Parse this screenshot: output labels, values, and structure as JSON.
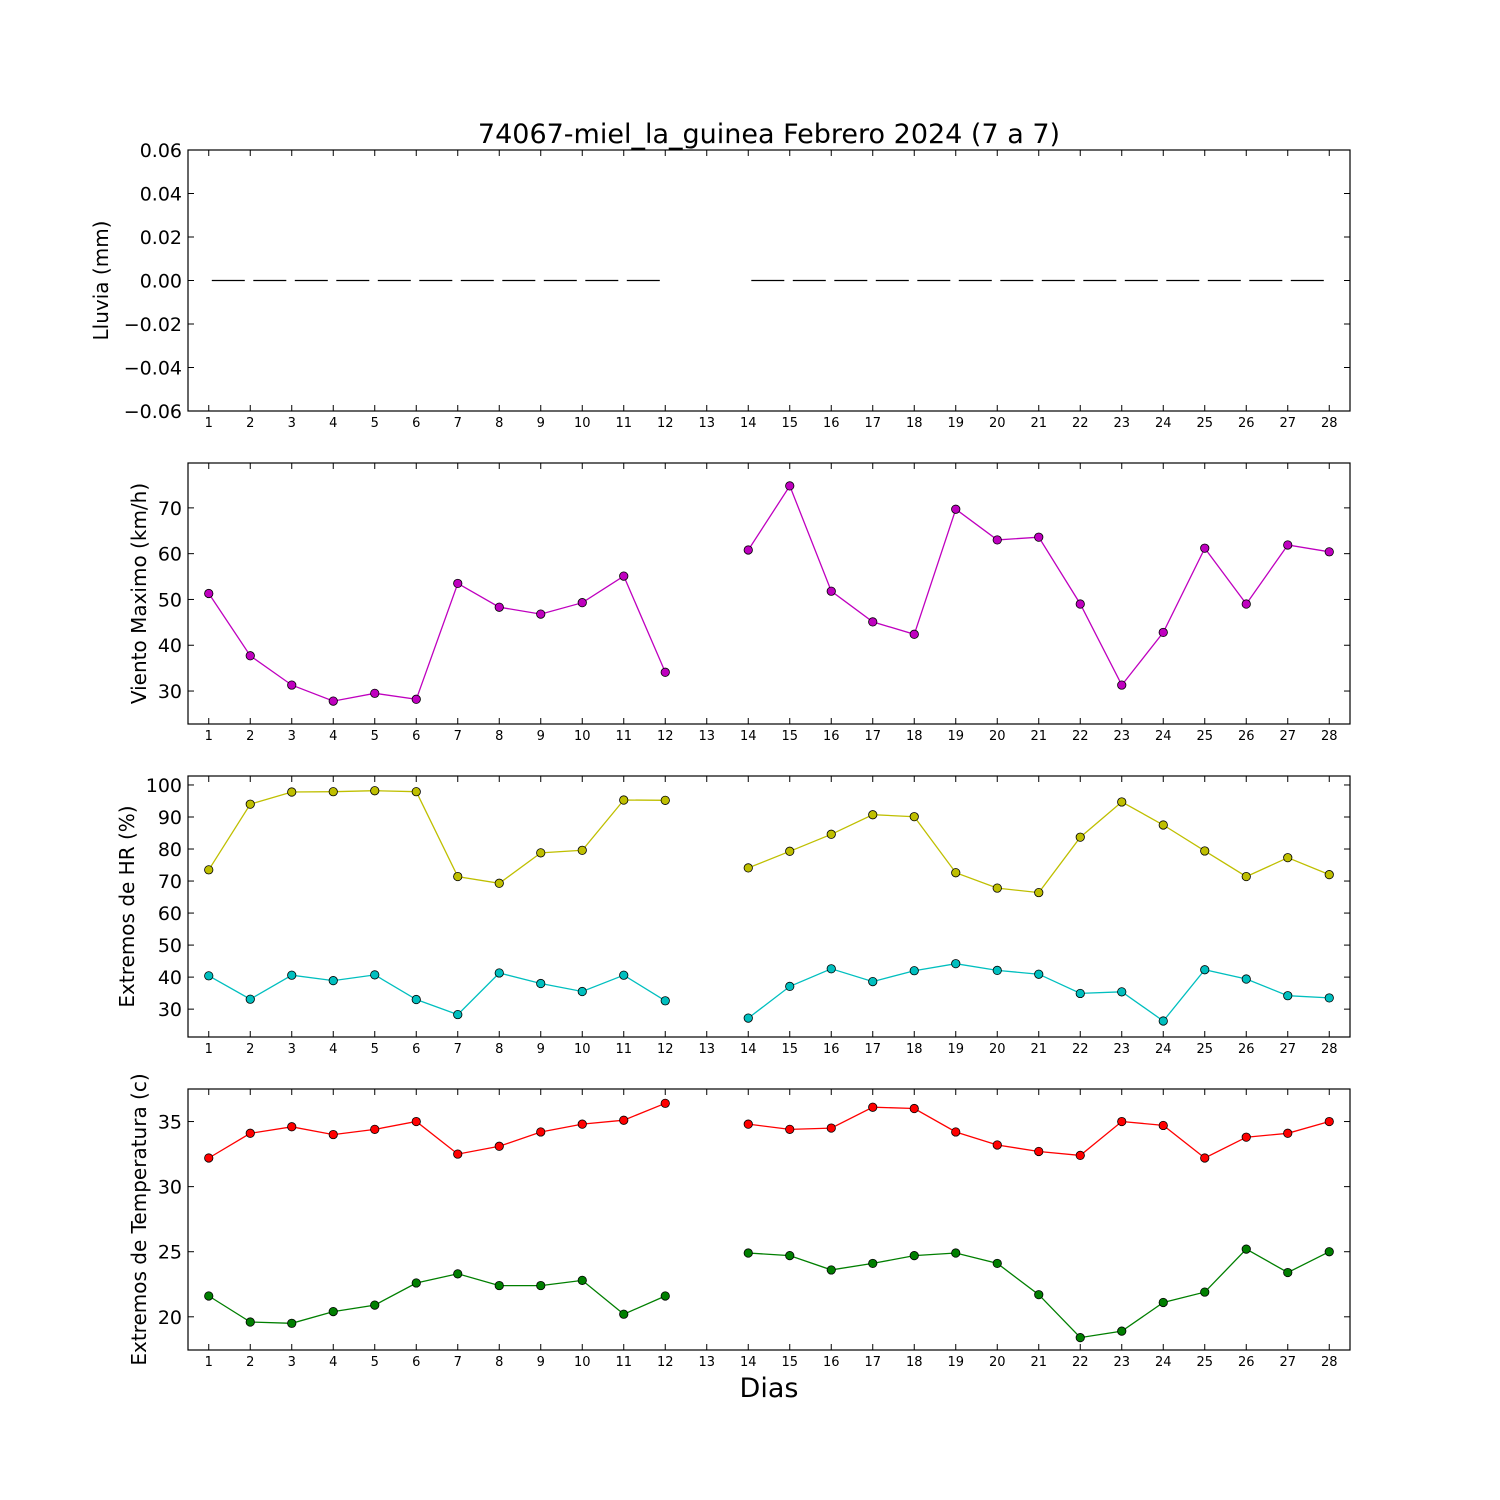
{
  "title": "74067-miel_la_guinea Febrero 2024  (7 a 7)",
  "chart_data": {
    "x": [
      1,
      2,
      3,
      4,
      5,
      6,
      7,
      8,
      9,
      10,
      11,
      12,
      13,
      14,
      15,
      16,
      17,
      18,
      19,
      20,
      21,
      22,
      23,
      24,
      25,
      26,
      27,
      28
    ],
    "xlabel": "Dias",
    "panels": [
      {
        "type": "line",
        "ylabel": "Lluvia (mm)",
        "ylim": [
          -0.06,
          0.06
        ],
        "yticks": [
          0.06,
          0.04,
          0.02,
          0.0,
          -0.02,
          -0.04,
          -0.06
        ],
        "ytick_labels": [
          "0.06",
          "0.04",
          "0.02",
          "0.00",
          "−0.02",
          "−0.04",
          "−0.06"
        ],
        "series": [
          {
            "color": "#000000",
            "style": "dashed",
            "marker": "none",
            "values": [
              0,
              0,
              0,
              0,
              0,
              0,
              0,
              0,
              0,
              0,
              0,
              0,
              null,
              0,
              0,
              0,
              0,
              0,
              0,
              0,
              0,
              0,
              0,
              0,
              0,
              0,
              0,
              0
            ]
          }
        ]
      },
      {
        "type": "line",
        "ylabel": "Viento Maximo (km/h)",
        "ylim": [
          22.8,
          79.8
        ],
        "yticks": [
          30,
          40,
          50,
          60,
          70
        ],
        "ytick_labels": [
          "30",
          "40",
          "50",
          "60",
          "70"
        ],
        "series": [
          {
            "color": "#bf00bf",
            "marker": "circle",
            "values": [
              51.3,
              37.7,
              31.3,
              27.8,
              29.5,
              28.2,
              53.5,
              48.3,
              46.8,
              49.3,
              55.1,
              34.1,
              null,
              60.8,
              74.8,
              51.8,
              45.1,
              42.4,
              69.7,
              63.0,
              63.6,
              49.0,
              31.3,
              42.8,
              61.2,
              49.0,
              61.9,
              60.4
            ]
          }
        ]
      },
      {
        "type": "line",
        "ylabel": "Extremos de HR (%)",
        "ylim": [
          21.3,
          102.8
        ],
        "yticks": [
          30,
          40,
          50,
          60,
          70,
          80,
          90,
          100
        ],
        "ytick_labels": [
          "30",
          "40",
          "50",
          "60",
          "70",
          "80",
          "90",
          "100"
        ],
        "series": [
          {
            "color": "#bfbf00",
            "marker": "circle",
            "values": [
              73.5,
              94.0,
              97.8,
              97.9,
              98.2,
              97.9,
              71.4,
              69.3,
              78.8,
              79.6,
              95.3,
              95.2,
              null,
              74.1,
              79.3,
              84.6,
              90.7,
              90.1,
              72.6,
              67.8,
              66.4,
              83.7,
              94.7,
              87.5,
              79.4,
              71.4,
              77.3,
              72.0
            ]
          },
          {
            "color": "#00bfbf",
            "marker": "circle",
            "values": [
              40.4,
              33.1,
              40.6,
              38.9,
              40.7,
              33.0,
              28.3,
              41.3,
              38.0,
              35.5,
              40.6,
              32.6,
              null,
              27.2,
              37.1,
              42.6,
              38.6,
              42.0,
              44.2,
              42.1,
              40.9,
              34.9,
              35.4,
              26.3,
              42.3,
              39.4,
              34.2,
              33.5
            ]
          }
        ]
      },
      {
        "type": "line",
        "ylabel": "Extremos de Temperatura (c)",
        "ylim": [
          17.45,
          37.5
        ],
        "yticks": [
          20,
          25,
          30,
          35
        ],
        "ytick_labels": [
          "20",
          "25",
          "30",
          "35"
        ],
        "series": [
          {
            "color": "#ff0000",
            "marker": "circle",
            "values": [
              32.2,
              34.1,
              34.6,
              34.0,
              34.4,
              35.0,
              32.5,
              33.1,
              34.2,
              34.8,
              35.1,
              36.4,
              null,
              34.8,
              34.4,
              34.5,
              36.1,
              36.0,
              34.2,
              33.2,
              32.7,
              32.4,
              35.0,
              34.7,
              32.2,
              33.8,
              34.1,
              35.0
            ]
          },
          {
            "color": "#007f00",
            "marker": "circle",
            "values": [
              21.6,
              19.6,
              19.5,
              20.4,
              20.9,
              22.6,
              23.3,
              22.4,
              22.4,
              22.8,
              20.2,
              21.6,
              null,
              24.9,
              24.7,
              23.6,
              24.1,
              24.7,
              24.9,
              24.1,
              21.7,
              18.4,
              18.9,
              21.1,
              21.9,
              25.2,
              23.4,
              25.0
            ]
          }
        ]
      }
    ]
  }
}
